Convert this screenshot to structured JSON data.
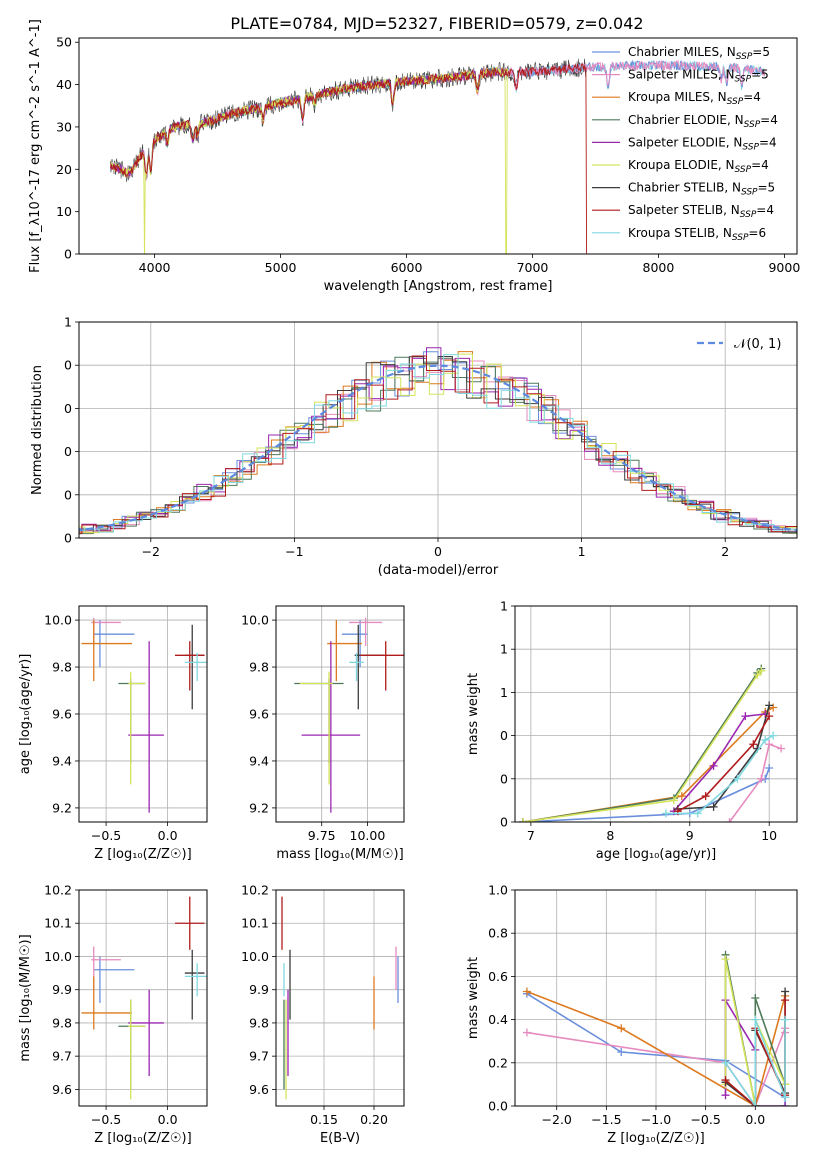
{
  "figure_title": "PLATE=0784, MJD=52327, FIBERID=0579, z=0.042",
  "series_styles": [
    {
      "name": "Chabrier MILES",
      "nssp": "5",
      "color": "#6b8fdc"
    },
    {
      "name": "Salpeter MILES",
      "nssp": "5",
      "color": "#e68bbf"
    },
    {
      "name": "Kroupa MILES",
      "nssp": "4",
      "color": "#dd7a1f"
    },
    {
      "name": "Chabrier ELODIE",
      "nssp": "4",
      "color": "#4f7a5a"
    },
    {
      "name": "Salpeter ELODIE",
      "nssp": "4",
      "color": "#9b27b0"
    },
    {
      "name": "Kroupa ELODIE",
      "nssp": "4",
      "color": "#d4e35a"
    },
    {
      "name": "Chabrier STELIB",
      "nssp": "5",
      "color": "#3c3c3c"
    },
    {
      "name": "Salpeter STELIB",
      "nssp": "4",
      "color": "#b01c1c"
    },
    {
      "name": "Kroupa STELIB",
      "nssp": "6",
      "color": "#7fd8e0"
    }
  ],
  "chart_data": [
    {
      "id": "spectrum",
      "type": "line",
      "xlabel": "wavelength [Angstrom, rest frame]",
      "ylabel": "Flux [f_λ10^-17 erg cm^-2 s^-1 A^-1]",
      "xlim": [
        3400,
        9100
      ],
      "ylim": [
        0,
        51
      ],
      "xticks": [
        4000,
        5000,
        6000,
        7000,
        8000,
        9000
      ],
      "yticks": [
        0,
        10,
        20,
        30,
        40,
        50
      ],
      "grid": false,
      "legend_position": "top-right",
      "continuum_knots": [
        [
          3650,
          21
        ],
        [
          3800,
          19
        ],
        [
          3950,
          26
        ],
        [
          4150,
          30
        ],
        [
          4400,
          31
        ],
        [
          4600,
          33
        ],
        [
          4900,
          35
        ],
        [
          5200,
          37
        ],
        [
          5500,
          39
        ],
        [
          5900,
          40.5
        ],
        [
          6300,
          41.5
        ],
        [
          6700,
          43
        ],
        [
          7000,
          43
        ],
        [
          7400,
          44
        ],
        [
          7800,
          44.5
        ],
        [
          8200,
          44.5
        ],
        [
          8600,
          44
        ],
        [
          8850,
          43
        ]
      ],
      "absorption_lines": [
        [
          3934,
          7
        ],
        [
          3969,
          7
        ],
        [
          4102,
          3
        ],
        [
          4304,
          4
        ],
        [
          4340,
          3
        ],
        [
          4861,
          3
        ],
        [
          5175,
          5
        ],
        [
          5270,
          2
        ],
        [
          5890,
          5
        ],
        [
          6563,
          4
        ],
        [
          6870,
          4
        ],
        [
          7600,
          5
        ],
        [
          8498,
          3
        ],
        [
          8542,
          4
        ],
        [
          8662,
          4
        ]
      ],
      "dropouts": [
        {
          "series": "Kroupa ELODIE",
          "at": 3920
        },
        {
          "series": "Kroupa ELODIE",
          "at": 6790
        },
        {
          "series": "Salpeter STELIB",
          "at": 7430
        }
      ],
      "series_ends": [
        8850,
        8850,
        6800,
        6800,
        6800,
        6800,
        7430,
        7430,
        8850
      ]
    },
    {
      "id": "residuals",
      "type": "histogram",
      "xlabel": "(data-model)/error",
      "ylabel": "Normed distribution",
      "xlim": [
        -2.5,
        2.5
      ],
      "ylim": [
        0,
        0.5
      ],
      "xticks": [
        -2,
        -1,
        0,
        1,
        2
      ],
      "yticks": [
        0.0,
        0.1,
        0.2,
        0.3,
        0.4,
        0.5
      ],
      "grid": true,
      "legend_position": "top-right",
      "reference": {
        "label": "𝒩(0, 1)",
        "mean": 0,
        "sigma": 1,
        "color": "#5b8ae0"
      },
      "bin_width": 0.1
    },
    {
      "id": "age_vs_Z",
      "type": "scatter",
      "xlabel": "Z [log₁₀(Z/Z☉)]",
      "ylabel": "age [log₁₀(age/yr)]",
      "xlim": [
        -0.72,
        0.32
      ],
      "ylim": [
        9.14,
        10.06
      ],
      "xticks": [
        -0.5,
        0.0
      ],
      "yticks": [
        9.2,
        9.4,
        9.6,
        9.8,
        10.0
      ],
      "grid": true,
      "points": [
        {
          "series": "Chabrier MILES",
          "x": -0.55,
          "xerr": [
            0.05,
            0.28
          ],
          "y": 9.94,
          "yerr": [
            0.14,
            0.06
          ]
        },
        {
          "series": "Salpeter MILES",
          "x": -0.6,
          "xerr": [
            0.02,
            0.22
          ],
          "y": 9.99,
          "yerr": [
            0.1,
            0.02
          ]
        },
        {
          "series": "Kroupa MILES",
          "x": -0.6,
          "xerr": [
            0.1,
            0.31
          ],
          "y": 9.9,
          "yerr": [
            0.16,
            0.1
          ]
        },
        {
          "series": "Chabrier ELODIE",
          "x": -0.3,
          "xerr": [
            0.1,
            0.12
          ],
          "y": 9.73,
          "yerr": [
            0.34,
            0.02
          ]
        },
        {
          "series": "Salpeter ELODIE",
          "x": -0.15,
          "xerr": [
            0.17,
            0.12
          ],
          "y": 9.51,
          "yerr": [
            0.33,
            0.4
          ]
        },
        {
          "series": "Kroupa ELODIE",
          "x": -0.3,
          "xerr": [
            0.02,
            0.12
          ],
          "y": 9.73,
          "yerr": [
            0.43,
            0.05
          ]
        },
        {
          "series": "Chabrier STELIB",
          "x": 0.2,
          "xerr": [
            0.06,
            0.1
          ],
          "y": 9.85,
          "yerr": [
            0.23,
            0.13
          ]
        },
        {
          "series": "Salpeter STELIB",
          "x": 0.18,
          "xerr": [
            0.12,
            0.12
          ],
          "y": 9.85,
          "yerr": [
            0.15,
            0.06
          ]
        },
        {
          "series": "Kroupa STELIB",
          "x": 0.24,
          "xerr": [
            0.1,
            0.1
          ],
          "y": 9.82,
          "yerr": [
            0.08,
            0.04
          ]
        }
      ]
    },
    {
      "id": "age_vs_mass",
      "type": "scatter",
      "xlabel": "mass [log₁₀(M/M☉)]",
      "ylabel": "",
      "xlim": [
        9.5,
        10.2
      ],
      "ylim": [
        9.14,
        10.06
      ],
      "xticks": [
        9.75,
        10.0
      ],
      "yticks": [
        9.2,
        9.4,
        9.6,
        9.8,
        10.0
      ],
      "grid": true,
      "points": [
        {
          "series": "Chabrier MILES",
          "x": 9.96,
          "xerr": [
            0.1,
            0.04
          ],
          "y": 9.94,
          "yerr": [
            0.14,
            0.06
          ]
        },
        {
          "series": "Salpeter MILES",
          "x": 9.99,
          "xerr": [
            0.09,
            0.09
          ],
          "y": 9.99,
          "yerr": [
            0.1,
            0.02
          ]
        },
        {
          "series": "Kroupa MILES",
          "x": 9.83,
          "xerr": [
            0.05,
            0.14
          ],
          "y": 9.9,
          "yerr": [
            0.16,
            0.1
          ]
        },
        {
          "series": "Chabrier ELODIE",
          "x": 9.79,
          "xerr": [
            0.19,
            0.08
          ],
          "y": 9.73,
          "yerr": [
            0.34,
            0.02
          ]
        },
        {
          "series": "Salpeter ELODIE",
          "x": 9.8,
          "xerr": [
            0.16,
            0.16
          ],
          "y": 9.51,
          "yerr": [
            0.33,
            0.4
          ]
        },
        {
          "series": "Kroupa ELODIE",
          "x": 9.79,
          "xerr": [
            0.16,
            0.02
          ],
          "y": 9.73,
          "yerr": [
            0.43,
            0.05
          ]
        },
        {
          "series": "Chabrier STELIB",
          "x": 9.95,
          "xerr": [
            0.02,
            0.14
          ],
          "y": 9.85,
          "yerr": [
            0.23,
            0.13
          ]
        },
        {
          "series": "Salpeter STELIB",
          "x": 10.1,
          "xerr": [
            0.14,
            0.1
          ],
          "y": 9.85,
          "yerr": [
            0.15,
            0.06
          ]
        },
        {
          "series": "Kroupa STELIB",
          "x": 9.94,
          "xerr": [
            0.04,
            0.04
          ],
          "y": 9.82,
          "yerr": [
            0.08,
            0.04
          ]
        }
      ]
    },
    {
      "id": "weight_vs_age",
      "type": "line",
      "xlabel": "age [log₁₀(age/yr)]",
      "ylabel": "mass weight",
      "xlim": [
        6.8,
        10.35
      ],
      "ylim": [
        0,
        1.0
      ],
      "xticks": [
        7,
        8,
        9,
        10
      ],
      "yticks": [
        0.0,
        0.2,
        0.4,
        0.6,
        0.8,
        1.0
      ],
      "grid": true,
      "series": [
        {
          "name": "Chabrier MILES",
          "x": [
            6.9,
            9.0,
            9.95,
            10.0
          ],
          "y": [
            0.0,
            0.04,
            0.2,
            0.25
          ]
        },
        {
          "name": "Salpeter MILES",
          "x": [
            9.5,
            9.9,
            10.0,
            10.15
          ],
          "y": [
            0.0,
            0.2,
            0.36,
            0.34
          ]
        },
        {
          "name": "Kroupa MILES",
          "x": [
            6.9,
            8.9,
            9.95,
            10.05
          ],
          "y": [
            0.0,
            0.12,
            0.51,
            0.53
          ]
        },
        {
          "name": "Chabrier ELODIE",
          "x": [
            6.9,
            8.8,
            9.85,
            9.9
          ],
          "y": [
            0.0,
            0.11,
            0.69,
            0.71
          ]
        },
        {
          "name": "Salpeter ELODIE",
          "x": [
            8.8,
            9.3,
            9.7,
            9.95
          ],
          "y": [
            0.05,
            0.26,
            0.49,
            0.5
          ]
        },
        {
          "name": "Kroupa ELODIE",
          "x": [
            6.9,
            8.8,
            9.85,
            9.9
          ],
          "y": [
            0.0,
            0.1,
            0.68,
            0.7
          ]
        },
        {
          "name": "Chabrier STELIB",
          "x": [
            8.85,
            9.3,
            9.85,
            10.0
          ],
          "y": [
            0.06,
            0.07,
            0.34,
            0.54
          ]
        },
        {
          "name": "Salpeter STELIB",
          "x": [
            8.85,
            9.2,
            9.8,
            10.0
          ],
          "y": [
            0.05,
            0.12,
            0.36,
            0.49
          ]
        },
        {
          "name": "Kroupa STELIB",
          "x": [
            8.7,
            9.1,
            9.6,
            9.95,
            10.05
          ],
          "y": [
            0.04,
            0.04,
            0.2,
            0.38,
            0.4
          ]
        }
      ]
    },
    {
      "id": "mass_vs_Z",
      "type": "scatter",
      "xlabel": "Z [log₁₀(Z/Z☉)]",
      "ylabel": "mass [log₁₀(M/M☉)]",
      "xlim": [
        -0.72,
        0.32
      ],
      "ylim": [
        9.55,
        10.2
      ],
      "xticks": [
        -0.5,
        0.0
      ],
      "yticks": [
        9.6,
        9.7,
        9.8,
        9.9,
        10.0,
        10.1,
        10.2
      ],
      "grid": true,
      "points": [
        {
          "series": "Chabrier MILES",
          "x": -0.55,
          "xerr": [
            0.05,
            0.28
          ],
          "y": 9.96,
          "yerr": [
            0.1,
            0.04
          ]
        },
        {
          "series": "Salpeter MILES",
          "x": -0.6,
          "xerr": [
            0.02,
            0.22
          ],
          "y": 9.99,
          "yerr": [
            0.09,
            0.04
          ]
        },
        {
          "series": "Kroupa MILES",
          "x": -0.6,
          "xerr": [
            0.1,
            0.31
          ],
          "y": 9.83,
          "yerr": [
            0.05,
            0.11
          ]
        },
        {
          "series": "Chabrier ELODIE",
          "x": -0.3,
          "xerr": [
            0.1,
            0.12
          ],
          "y": 9.79,
          "yerr": [
            0.19,
            0.08
          ]
        },
        {
          "series": "Salpeter ELODIE",
          "x": -0.15,
          "xerr": [
            0.17,
            0.12
          ],
          "y": 9.8,
          "yerr": [
            0.16,
            0.1
          ]
        },
        {
          "series": "Kroupa ELODIE",
          "x": -0.3,
          "xerr": [
            0.02,
            0.12
          ],
          "y": 9.79,
          "yerr": [
            0.22,
            0.08
          ]
        },
        {
          "series": "Chabrier STELIB",
          "x": 0.2,
          "xerr": [
            0.06,
            0.1
          ],
          "y": 9.95,
          "yerr": [
            0.14,
            0.07
          ]
        },
        {
          "series": "Salpeter STELIB",
          "x": 0.18,
          "xerr": [
            0.12,
            0.12
          ],
          "y": 10.1,
          "yerr": [
            0.08,
            0.08
          ]
        },
        {
          "series": "Kroupa STELIB",
          "x": 0.24,
          "xerr": [
            0.1,
            0.1
          ],
          "y": 9.94,
          "yerr": [
            0.06,
            0.04
          ]
        }
      ]
    },
    {
      "id": "mass_vs_ebv",
      "type": "scatter",
      "xlabel": "E(B-V)",
      "ylabel": "",
      "xlim": [
        0.102,
        0.23
      ],
      "ylim": [
        9.55,
        10.2
      ],
      "xticks": [
        0.15,
        0.2
      ],
      "yticks": [
        9.6,
        9.7,
        9.8,
        9.9,
        10.0,
        10.1,
        10.2
      ],
      "grid": true,
      "points": [
        {
          "series": "Chabrier MILES",
          "x": 0.224,
          "yerr": [
            0.1,
            0.04
          ],
          "y": 9.96
        },
        {
          "series": "Salpeter MILES",
          "x": 0.222,
          "yerr": [
            0.09,
            0.04
          ],
          "y": 9.99
        },
        {
          "series": "Kroupa MILES",
          "x": 0.2,
          "yerr": [
            0.05,
            0.11
          ],
          "y": 9.83
        },
        {
          "series": "Chabrier ELODIE",
          "x": 0.11,
          "yerr": [
            0.19,
            0.08
          ],
          "y": 9.79
        },
        {
          "series": "Salpeter ELODIE",
          "x": 0.114,
          "yerr": [
            0.16,
            0.1
          ],
          "y": 9.8
        },
        {
          "series": "Kroupa ELODIE",
          "x": 0.112,
          "yerr": [
            0.22,
            0.08
          ],
          "y": 9.79
        },
        {
          "series": "Chabrier STELIB",
          "x": 0.116,
          "yerr": [
            0.14,
            0.07
          ],
          "y": 9.95
        },
        {
          "series": "Salpeter STELIB",
          "x": 0.108,
          "yerr": [
            0.08,
            0.08
          ],
          "y": 10.1
        },
        {
          "series": "Kroupa STELIB",
          "x": 0.11,
          "yerr": [
            0.06,
            0.04
          ],
          "y": 9.94
        }
      ]
    },
    {
      "id": "weight_vs_Z",
      "type": "line",
      "xlabel": "Z [log₁₀(Z/Z☉)]",
      "ylabel": "mass weight",
      "xlim": [
        -2.42,
        0.42
      ],
      "ylim": [
        0,
        1.0
      ],
      "xticks": [
        -2.0,
        -1.5,
        -1.0,
        -0.5,
        0.0
      ],
      "yticks": [
        0.0,
        0.2,
        0.4,
        0.6,
        0.8,
        1.0
      ],
      "grid": true,
      "series": [
        {
          "name": "Chabrier MILES",
          "x": [
            -2.3,
            -1.35,
            -0.3,
            0.3,
            0.3
          ],
          "y": [
            0.52,
            0.25,
            0.21,
            0.04,
            0.0
          ]
        },
        {
          "name": "Salpeter MILES",
          "x": [
            -2.3,
            -0.3,
            0.0,
            0.3,
            0.3
          ],
          "y": [
            0.34,
            0.2,
            0.0,
            0.36,
            0.34
          ]
        },
        {
          "name": "Kroupa MILES",
          "x": [
            -2.3,
            -1.35,
            0.0,
            0.3
          ],
          "y": [
            0.53,
            0.36,
            0.0,
            0.51
          ]
        },
        {
          "name": "Chabrier ELODIE",
          "x": [
            -0.3,
            -0.3,
            0.0,
            0.0,
            0.3
          ],
          "y": [
            0.11,
            0.7,
            0.0,
            0.5,
            0.1
          ]
        },
        {
          "name": "Salpeter ELODIE",
          "x": [
            -0.3,
            -0.3,
            0.0,
            0.0,
            0.3
          ],
          "y": [
            0.05,
            0.49,
            0.26,
            0.0,
            0.0
          ]
        },
        {
          "name": "Kroupa ELODIE",
          "x": [
            -0.3,
            -0.3,
            0.0,
            0.0,
            0.3
          ],
          "y": [
            0.1,
            0.68,
            0.0,
            0.4,
            0.1
          ]
        },
        {
          "name": "Chabrier STELIB",
          "x": [
            -0.3,
            0.0,
            0.0,
            0.3,
            0.3
          ],
          "y": [
            0.11,
            0.0,
            0.35,
            0.06,
            0.53
          ]
        },
        {
          "name": "Salpeter STELIB",
          "x": [
            -0.3,
            0.0,
            0.0,
            0.3,
            0.3
          ],
          "y": [
            0.12,
            0.0,
            0.36,
            0.05,
            0.49
          ]
        },
        {
          "name": "Kroupa STELIB",
          "x": [
            -0.3,
            0.0,
            0.0,
            0.3,
            0.3
          ],
          "y": [
            0.2,
            0.0,
            0.4,
            0.04,
            0.4
          ]
        }
      ]
    }
  ]
}
